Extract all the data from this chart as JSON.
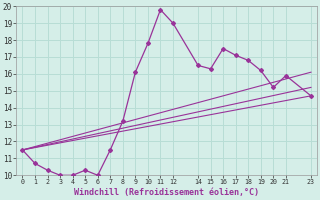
{
  "xlabel": "Windchill (Refroidissement éolien,°C)",
  "bg_color": "#d5eee8",
  "line_color": "#993399",
  "grid_color": "#b8ddd5",
  "xlim": [
    -0.5,
    23.5
  ],
  "ylim": [
    10,
    20
  ],
  "xticks": [
    0,
    1,
    2,
    3,
    4,
    5,
    6,
    7,
    8,
    9,
    10,
    11,
    12,
    14,
    15,
    16,
    17,
    18,
    19,
    20,
    21,
    23
  ],
  "yticks": [
    10,
    11,
    12,
    13,
    14,
    15,
    16,
    17,
    18,
    19,
    20
  ],
  "series": [
    {
      "x": [
        0,
        1,
        2,
        3,
        4,
        5,
        6,
        7,
        8,
        9,
        10,
        11,
        12,
        14,
        15,
        16,
        17,
        18,
        19,
        20,
        21,
        23
      ],
      "y": [
        11.5,
        10.7,
        10.3,
        10.0,
        10.0,
        10.3,
        10.0,
        11.5,
        13.2,
        16.1,
        17.8,
        19.8,
        19.0,
        16.5,
        16.3,
        17.5,
        17.1,
        16.8,
        16.2,
        15.2,
        15.9,
        14.7
      ]
    },
    {
      "x": [
        0,
        23
      ],
      "y": [
        11.5,
        14.7
      ]
    },
    {
      "x": [
        0,
        23
      ],
      "y": [
        11.5,
        15.2
      ]
    },
    {
      "x": [
        0,
        23
      ],
      "y": [
        11.5,
        16.1
      ]
    }
  ]
}
